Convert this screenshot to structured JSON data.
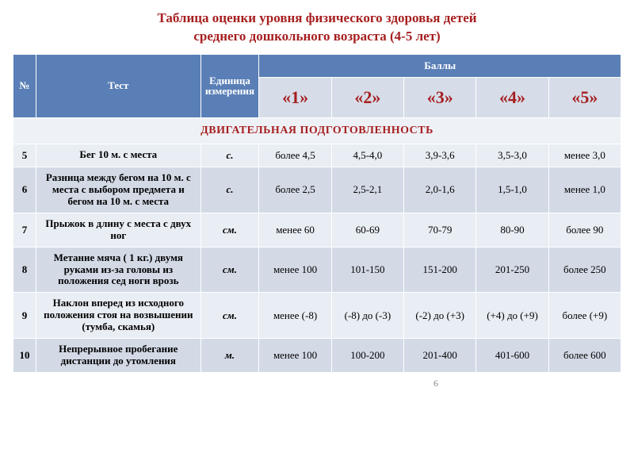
{
  "title_line1": "Таблица оценки уровня физического здоровья детей",
  "title_line2": "среднего дошкольного возраста (4-5 лет)",
  "title_color": "#a61f20",
  "header": {
    "bg": "#5a7fb6",
    "subheader_bg": "#d6dde8",
    "score_color": "#a61f20",
    "num": "№",
    "test": "Тест",
    "unit": "Единица измерения",
    "scores": "Баллы",
    "levels": [
      "«1»",
      "«2»",
      "«3»",
      "«4»",
      "«5»"
    ]
  },
  "section": {
    "label": "ДВИГАТЕЛЬНАЯ ПОДГОТОВЛЕННОСТЬ",
    "bg": "#eef1f6",
    "color": "#a61f20"
  },
  "row_colors": {
    "odd": "#e9edf4",
    "even": "#d3dae6"
  },
  "rows": [
    {
      "n": "5",
      "test": "Бег 10 м. с места",
      "unit": "с.",
      "v": [
        "более 4,5",
        "4,5-4,0",
        "3,9-3,6",
        "3,5-3,0",
        "менее 3,0"
      ]
    },
    {
      "n": "6",
      "test": "Разница между бегом на 10 м. с места с выбором предмета и бегом на 10 м. с места",
      "unit": "с.",
      "v": [
        "более 2,5",
        "2,5-2,1",
        "2,0-1,6",
        "1,5-1,0",
        "менее 1,0"
      ]
    },
    {
      "n": "7",
      "test": "Прыжок в длину с места с двух ног",
      "unit": "см.",
      "v": [
        "менее 60",
        "60-69",
        "70-79",
        "80-90",
        "более 90"
      ]
    },
    {
      "n": "8",
      "test": "Метание мяча ( 1 кг.) двумя руками из-за головы из положения сед ноги врозь",
      "unit": "см.",
      "v": [
        "менее 100",
        "101-150",
        "151-200",
        "201-250",
        "более 250"
      ]
    },
    {
      "n": "9",
      "test": "Наклон вперед из исходного положения стоя на возвышении  (тумба, скамья)",
      "unit": "см.",
      "v": [
        "менее (-8)",
        "(-8) до (-3)",
        "(-2) до (+3)",
        "(+4) до (+9)",
        "более (+9)"
      ]
    },
    {
      "n": "10",
      "test": "Непрерывное пробегание дистанции до утомления",
      "unit": "м.",
      "v": [
        "менее 100",
        "100-200",
        "201-400",
        "401-600",
        "более 600"
      ]
    }
  ],
  "page_number": "6"
}
